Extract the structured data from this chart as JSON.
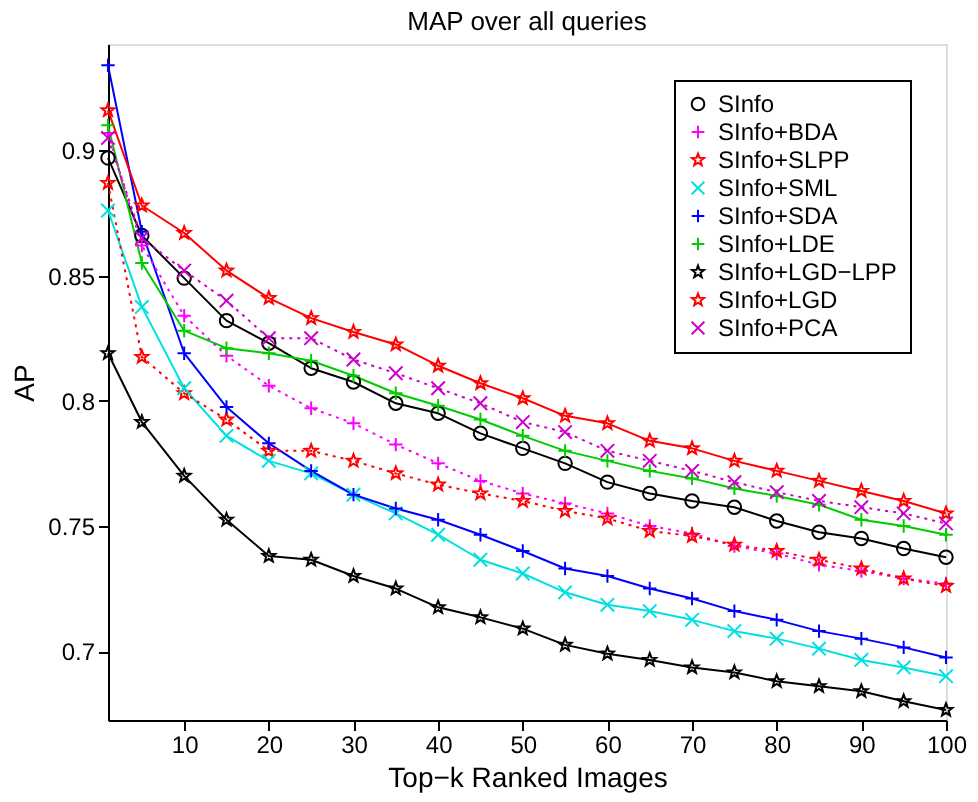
{
  "chart_data": {
    "type": "line",
    "title": "MAP over all queries",
    "xlabel": "Top−k Ranked Images",
    "ylabel": "AP",
    "x": [
      1,
      5,
      10,
      15,
      20,
      25,
      30,
      35,
      40,
      45,
      50,
      55,
      60,
      65,
      70,
      75,
      80,
      85,
      90,
      95,
      100
    ],
    "xlim": [
      1,
      100
    ],
    "xticks": [
      10,
      20,
      30,
      40,
      50,
      60,
      70,
      80,
      90,
      100
    ],
    "ylim": [
      0.6725,
      0.9425
    ],
    "yticks": [
      0.7,
      0.75,
      0.8,
      0.85,
      0.9
    ],
    "grid": false,
    "legend": "top right",
    "series": [
      {
        "name": "SInfo",
        "color": "#000000",
        "marker": "circle",
        "line_style": "solid",
        "values": [
          0.897,
          0.866,
          0.849,
          0.832,
          0.823,
          0.813,
          0.8075,
          0.799,
          0.795,
          0.787,
          0.781,
          0.775,
          0.7675,
          0.763,
          0.76,
          0.7575,
          0.752,
          0.7475,
          0.745,
          0.741,
          0.7375
        ]
      },
      {
        "name": "SInfo+BDA",
        "color": "#ff00ff",
        "marker": "cross",
        "line_style": "dotted",
        "values": [
          0.907,
          0.862,
          0.834,
          0.818,
          0.806,
          0.797,
          0.791,
          0.7825,
          0.775,
          0.768,
          0.763,
          0.759,
          0.755,
          0.75,
          0.747,
          0.742,
          0.739,
          0.7345,
          0.732,
          0.729,
          0.727
        ]
      },
      {
        "name": "SInfo+SLPP",
        "color": "#ff0000",
        "marker": "star",
        "line_style": "dotted",
        "values": [
          0.887,
          0.8175,
          0.803,
          0.7925,
          0.78,
          0.78,
          0.776,
          0.771,
          0.7665,
          0.763,
          0.76,
          0.756,
          0.753,
          0.748,
          0.746,
          0.7425,
          0.74,
          0.7365,
          0.733,
          0.729,
          0.726
        ]
      },
      {
        "name": "SInfo+SML",
        "color": "#00e0e0",
        "marker": "x",
        "line_style": "solid",
        "values": [
          0.876,
          0.8375,
          0.805,
          0.786,
          0.776,
          0.771,
          0.7625,
          0.755,
          0.7465,
          0.7365,
          0.731,
          0.7235,
          0.7185,
          0.716,
          0.7125,
          0.708,
          0.705,
          0.701,
          0.6965,
          0.6935,
          0.69
        ]
      },
      {
        "name": "SInfo+SDA",
        "color": "#0000ff",
        "marker": "cross",
        "line_style": "solid",
        "values": [
          0.934,
          0.8675,
          0.819,
          0.7975,
          0.783,
          0.772,
          0.7625,
          0.757,
          0.7525,
          0.7465,
          0.74,
          0.733,
          0.73,
          0.725,
          0.721,
          0.716,
          0.7125,
          0.708,
          0.705,
          0.7015,
          0.6975
        ]
      },
      {
        "name": "SInfo+LDE",
        "color": "#00cc00",
        "marker": "cross",
        "line_style": "solid",
        "values": [
          0.91,
          0.855,
          0.828,
          0.821,
          0.819,
          0.816,
          0.81,
          0.803,
          0.798,
          0.7925,
          0.786,
          0.78,
          0.776,
          0.772,
          0.769,
          0.765,
          0.762,
          0.7585,
          0.7525,
          0.75,
          0.7465
        ]
      },
      {
        "name": "SInfo+LGD−LPP",
        "color": "#000000",
        "marker": "star",
        "line_style": "solid",
        "values": [
          0.819,
          0.7915,
          0.77,
          0.7525,
          0.738,
          0.7365,
          0.73,
          0.725,
          0.7175,
          0.7135,
          0.709,
          0.7025,
          0.699,
          0.6965,
          0.6935,
          0.6915,
          0.688,
          0.686,
          0.684,
          0.68,
          0.6765
        ]
      },
      {
        "name": "SInfo+LGD",
        "color": "#ff0000",
        "marker": "star",
        "line_style": "solid",
        "values": [
          0.916,
          0.878,
          0.867,
          0.852,
          0.841,
          0.833,
          0.8275,
          0.8225,
          0.814,
          0.807,
          0.801,
          0.794,
          0.791,
          0.784,
          0.781,
          0.776,
          0.772,
          0.768,
          0.764,
          0.76,
          0.755
        ]
      },
      {
        "name": "SInfo+PCA",
        "color": "#cc00cc",
        "marker": "x",
        "line_style": "dotted",
        "values": [
          0.905,
          0.865,
          0.852,
          0.84,
          0.825,
          0.825,
          0.8165,
          0.811,
          0.805,
          0.799,
          0.7915,
          0.7875,
          0.78,
          0.776,
          0.772,
          0.7675,
          0.7635,
          0.76,
          0.7575,
          0.755,
          0.751
        ]
      }
    ]
  }
}
